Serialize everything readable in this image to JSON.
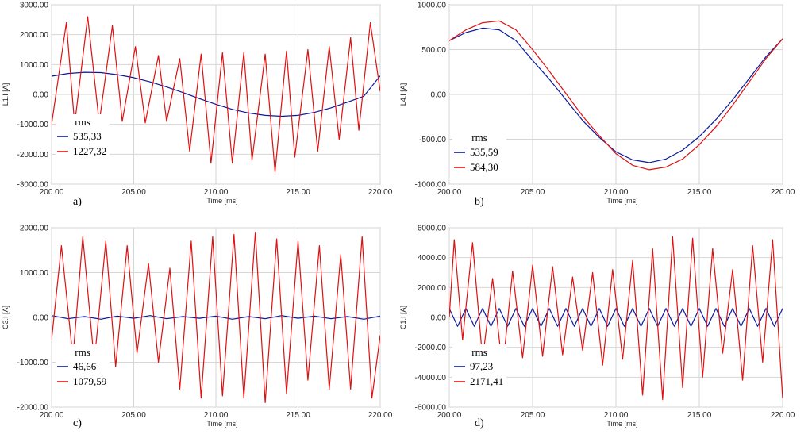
{
  "colors": {
    "series_blue": "#0a1a9c",
    "series_red": "#e01010",
    "grid": "#d6d6d6",
    "frame": "#9a9a9a"
  },
  "chart_data": [
    {
      "type": "line",
      "panel_label": "a)",
      "xlabel": "Time [ms]",
      "ylabel": "L1.I [A]",
      "xlim": [
        200,
        220
      ],
      "ylim": [
        -3000,
        3000
      ],
      "xticks": [
        "200.00",
        "205.00",
        "210.00",
        "215.00",
        "220.00"
      ],
      "yticks": [
        "3000.00",
        "2000.00",
        "1000.00",
        "0.00",
        "-1000.00",
        "-2000.00",
        "-3000.00"
      ],
      "grid": true,
      "legend": {
        "title": "rms",
        "position": "bottom-left"
      },
      "series": [
        {
          "name": "535,33",
          "color": "#0a1a9c",
          "x": [
            200,
            201,
            202,
            203,
            204,
            205,
            206,
            207,
            208,
            209,
            210,
            211,
            212,
            213,
            214,
            215,
            216,
            217,
            218,
            219,
            220
          ],
          "y": [
            610,
            700,
            740,
            730,
            660,
            560,
            420,
            250,
            60,
            -140,
            -330,
            -500,
            -620,
            -700,
            -730,
            -700,
            -600,
            -450,
            -260,
            -60,
            620
          ]
        },
        {
          "name": "1227,32",
          "color": "#e01010",
          "x": [
            200,
            200.9,
            201.4,
            202.2,
            202.9,
            203.7,
            204.3,
            205.1,
            205.7,
            206.5,
            207.0,
            207.8,
            208.4,
            209.1,
            209.7,
            210.4,
            211.0,
            211.7,
            212.2,
            213.0,
            213.6,
            214.3,
            214.8,
            215.6,
            216.2,
            216.9,
            217.5,
            218.2,
            218.7,
            219.4,
            220
          ],
          "y": [
            -1000,
            2400,
            -1000,
            2600,
            -950,
            2300,
            -900,
            1600,
            -950,
            1300,
            -900,
            1200,
            -1900,
            1350,
            -2300,
            1400,
            -2300,
            1400,
            -2200,
            1350,
            -2600,
            1450,
            -2100,
            1500,
            -1900,
            1600,
            -1500,
            1900,
            -1200,
            2400,
            100
          ]
        }
      ]
    },
    {
      "type": "line",
      "panel_label": "b)",
      "xlabel": "Time [ms]",
      "ylabel": "L4.I [A]",
      "xlim": [
        200,
        220
      ],
      "ylim": [
        -1000,
        1000
      ],
      "xticks": [
        "200.00",
        "205.00",
        "210.00",
        "215.00",
        "220.00"
      ],
      "yticks": [
        "1000.00",
        "500.00",
        "0.00",
        "-500.00",
        "-1000.00"
      ],
      "grid": true,
      "legend": {
        "title": "rms",
        "position": "bottom-left"
      },
      "series": [
        {
          "name": "535,59",
          "color": "#0a1a9c",
          "x": [
            200,
            201,
            202,
            203,
            204,
            205,
            206,
            207,
            208,
            209,
            210,
            211,
            212,
            213,
            214,
            215,
            216,
            217,
            218,
            219,
            220
          ],
          "y": [
            600,
            690,
            740,
            720,
            600,
            380,
            170,
            -60,
            -290,
            -480,
            -640,
            -730,
            -760,
            -720,
            -620,
            -470,
            -280,
            -60,
            180,
            420,
            620
          ]
        },
        {
          "name": "584,30",
          "color": "#e01010",
          "x": [
            200,
            201,
            202,
            203,
            204,
            205,
            206,
            207,
            208,
            209,
            210,
            211,
            212,
            213,
            214,
            215,
            216,
            217,
            218,
            219,
            220
          ],
          "y": [
            600,
            720,
            800,
            820,
            720,
            500,
            260,
            10,
            -240,
            -460,
            -660,
            -790,
            -840,
            -810,
            -720,
            -560,
            -360,
            -120,
            140,
            400,
            620
          ]
        }
      ]
    },
    {
      "type": "line",
      "panel_label": "c)",
      "xlabel": "Time [ms]",
      "ylabel": "C3.I [A]",
      "xlim": [
        200,
        220
      ],
      "ylim": [
        -2000,
        2000
      ],
      "xticks": [
        "200.00",
        "205.00",
        "210.00",
        "215.00",
        "220.00"
      ],
      "yticks": [
        "2000.00",
        "1000.00",
        "0.00",
        "-1000.00",
        "-2000.00"
      ],
      "grid": true,
      "legend": {
        "title": "rms",
        "position": "bottom-left"
      },
      "series": [
        {
          "name": "46,66",
          "color": "#0a1a9c",
          "x": [
            200,
            201,
            202,
            203,
            204,
            205,
            206,
            207,
            208,
            209,
            210,
            211,
            212,
            213,
            214,
            215,
            216,
            217,
            218,
            219,
            220
          ],
          "y": [
            40,
            -30,
            20,
            -40,
            30,
            -20,
            40,
            -30,
            20,
            -20,
            30,
            -40,
            20,
            -30,
            40,
            -20,
            30,
            -30,
            20,
            -40,
            30
          ]
        },
        {
          "name": "1079,59",
          "color": "#e01010",
          "x": [
            200,
            200.6,
            201.3,
            201.9,
            202.6,
            203.3,
            203.9,
            204.6,
            205.2,
            205.9,
            206.5,
            207.2,
            207.8,
            208.5,
            209.1,
            209.8,
            210.4,
            211.1,
            211.7,
            212.4,
            213.0,
            213.7,
            214.3,
            215.0,
            215.6,
            216.3,
            216.9,
            217.6,
            218.2,
            218.9,
            219.5,
            220
          ],
          "y": [
            -500,
            1600,
            -900,
            1800,
            -1000,
            1700,
            -1100,
            1600,
            -800,
            1200,
            -1000,
            1100,
            -1600,
            1700,
            -1800,
            1800,
            -1750,
            1850,
            -1800,
            1900,
            -1900,
            1750,
            -1700,
            1700,
            -1400,
            1600,
            -1600,
            1400,
            -1600,
            1800,
            -1800,
            -400
          ]
        }
      ]
    },
    {
      "type": "line",
      "panel_label": "d)",
      "xlabel": "Time [ms]",
      "ylabel": "C1.I [A]",
      "xlim": [
        200,
        220
      ],
      "ylim": [
        -6000,
        6000
      ],
      "xticks": [
        "200.00",
        "205.00",
        "210.00",
        "215.00",
        "220.00"
      ],
      "yticks": [
        "6000.00",
        "4000.00",
        "2000.00",
        "0.00",
        "-2000.00",
        "-4000.00",
        "-6000.00"
      ],
      "grid": true,
      "legend": {
        "title": "rms",
        "position": "bottom-left"
      },
      "series": [
        {
          "name": "97,23",
          "color": "#0a1a9c",
          "x": [
            200,
            200.5,
            201,
            201.5,
            202,
            202.5,
            203,
            203.5,
            204,
            204.5,
            205,
            205.5,
            206,
            206.5,
            207,
            207.5,
            208,
            208.5,
            209,
            209.5,
            210,
            210.5,
            211,
            211.5,
            212,
            212.5,
            213,
            213.5,
            214,
            214.5,
            215,
            215.5,
            216,
            216.5,
            217,
            217.5,
            218,
            218.5,
            219,
            219.5,
            220
          ],
          "y": [
            600,
            -600,
            600,
            -600,
            600,
            -600,
            600,
            -600,
            600,
            -600,
            600,
            -600,
            600,
            -600,
            600,
            -600,
            600,
            -600,
            600,
            -600,
            600,
            -600,
            600,
            -600,
            600,
            -600,
            600,
            -600,
            600,
            -600,
            600,
            -600,
            600,
            -600,
            600,
            -600,
            600,
            -600,
            600,
            -600,
            600
          ]
        },
        {
          "name": "2171,41",
          "color": "#e01010",
          "x": [
            200,
            200.3,
            200.8,
            201.4,
            202.0,
            202.6,
            203.2,
            203.8,
            204.4,
            205.0,
            205.6,
            206.2,
            206.8,
            207.4,
            208.0,
            208.6,
            209.2,
            209.8,
            210.4,
            211.0,
            211.6,
            212.2,
            212.8,
            213.4,
            214.0,
            214.6,
            215.2,
            215.8,
            216.4,
            217.0,
            217.6,
            218.2,
            218.8,
            219.4,
            220
          ],
          "y": [
            0,
            5200,
            -1500,
            5000,
            -2800,
            2600,
            -3500,
            3100,
            -2700,
            3500,
            -2600,
            3400,
            -2500,
            2700,
            -2200,
            3000,
            -3200,
            3200,
            -2800,
            3800,
            -5200,
            4600,
            -5500,
            5400,
            -4700,
            5300,
            -4000,
            4600,
            -2400,
            3200,
            -4200,
            4800,
            -3000,
            5200,
            -5400
          ]
        }
      ]
    }
  ]
}
